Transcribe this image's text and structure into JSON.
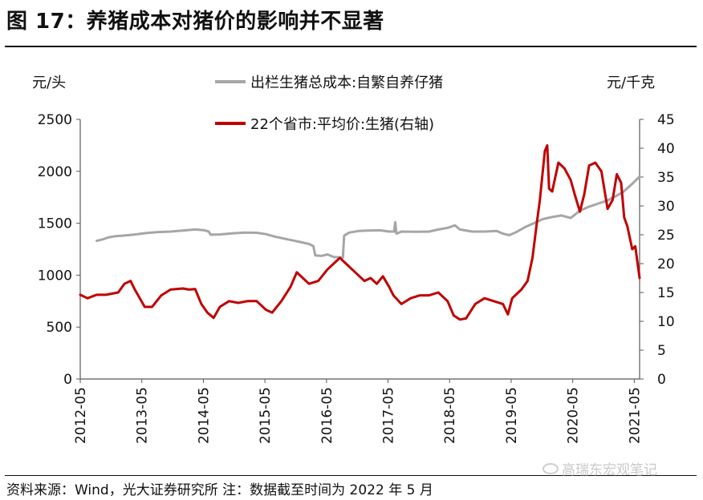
{
  "header": {
    "title": "图 17：养猪成本对猪价的影响并不显著"
  },
  "footer": {
    "source": "资料来源：Wind，光大证券研究所  注：数据截至时间为 2022 年 5 月",
    "watermark": "高瑞东宏观笔记"
  },
  "chart_data": {
    "type": "line",
    "title": "养猪成本对猪价的影响并不显著",
    "xlabel": "",
    "ylabel_left": "元/头",
    "ylabel_right": "元/千克",
    "ylim_left": [
      0,
      2500
    ],
    "ylim_right": [
      0,
      45
    ],
    "yticks_left": [
      0,
      500,
      1000,
      1500,
      2000,
      2500
    ],
    "yticks_right": [
      0,
      5,
      10,
      15,
      20,
      25,
      30,
      35,
      40,
      45
    ],
    "xticks": [
      "2012-05",
      "2013-05",
      "2014-05",
      "2015-05",
      "2016-05",
      "2017-05",
      "2018-05",
      "2019-05",
      "2020-05",
      "2021-05"
    ],
    "xlim": [
      2012.333,
      2021.42
    ],
    "legend_position": "top-center",
    "series": [
      {
        "name": "出栏生猪总成本:自繁自养仔猪",
        "axis": "left",
        "color": "#a6a6a6",
        "points": [
          [
            2012.6,
            1330
          ],
          [
            2012.7,
            1345
          ],
          [
            2012.8,
            1365
          ],
          [
            2012.9,
            1375
          ],
          [
            2013.0,
            1380
          ],
          [
            2013.2,
            1390
          ],
          [
            2013.4,
            1405
          ],
          [
            2013.6,
            1415
          ],
          [
            2013.8,
            1420
          ],
          [
            2014.0,
            1430
          ],
          [
            2014.2,
            1440
          ],
          [
            2014.35,
            1432
          ],
          [
            2014.42,
            1420
          ],
          [
            2014.45,
            1390
          ],
          [
            2014.6,
            1392
          ],
          [
            2014.8,
            1402
          ],
          [
            2015.0,
            1410
          ],
          [
            2015.2,
            1408
          ],
          [
            2015.35,
            1395
          ],
          [
            2015.5,
            1370
          ],
          [
            2015.7,
            1345
          ],
          [
            2015.9,
            1320
          ],
          [
            2016.05,
            1300
          ],
          [
            2016.12,
            1280
          ],
          [
            2016.15,
            1190
          ],
          [
            2016.25,
            1185
          ],
          [
            2016.35,
            1200
          ],
          [
            2016.45,
            1175
          ],
          [
            2016.6,
            1170
          ],
          [
            2016.62,
            1380
          ],
          [
            2016.7,
            1410
          ],
          [
            2016.85,
            1425
          ],
          [
            2017.0,
            1430
          ],
          [
            2017.2,
            1432
          ],
          [
            2017.35,
            1420
          ],
          [
            2017.43,
            1420
          ],
          [
            2017.45,
            1510
          ],
          [
            2017.47,
            1400
          ],
          [
            2017.55,
            1420
          ],
          [
            2017.8,
            1418
          ],
          [
            2018.0,
            1420
          ],
          [
            2018.15,
            1440
          ],
          [
            2018.3,
            1455
          ],
          [
            2018.42,
            1480
          ],
          [
            2018.5,
            1440
          ],
          [
            2018.7,
            1420
          ],
          [
            2018.9,
            1420
          ],
          [
            2019.1,
            1425
          ],
          [
            2019.2,
            1400
          ],
          [
            2019.3,
            1385
          ],
          [
            2019.4,
            1410
          ],
          [
            2019.55,
            1460
          ],
          [
            2019.7,
            1500
          ],
          [
            2019.85,
            1540
          ],
          [
            2020.0,
            1560
          ],
          [
            2020.15,
            1575
          ],
          [
            2020.3,
            1550
          ],
          [
            2020.45,
            1620
          ],
          [
            2020.6,
            1660
          ],
          [
            2020.75,
            1690
          ],
          [
            2020.9,
            1720
          ],
          [
            2021.0,
            1750
          ],
          [
            2021.15,
            1800
          ],
          [
            2021.3,
            1880
          ],
          [
            2021.42,
            1950
          ]
        ]
      },
      {
        "name": "22个省市:平均价:生猪(右轴)",
        "axis": "right",
        "color": "#c00000",
        "points": [
          [
            2012.333,
            14.6
          ],
          [
            2012.45,
            14.0
          ],
          [
            2012.6,
            14.6
          ],
          [
            2012.75,
            14.6
          ],
          [
            2012.95,
            15.0
          ],
          [
            2013.05,
            16.5
          ],
          [
            2013.15,
            17.0
          ],
          [
            2013.22,
            15.5
          ],
          [
            2013.3,
            14.0
          ],
          [
            2013.38,
            12.5
          ],
          [
            2013.5,
            12.5
          ],
          [
            2013.65,
            14.5
          ],
          [
            2013.8,
            15.5
          ],
          [
            2014.0,
            15.7
          ],
          [
            2014.1,
            15.5
          ],
          [
            2014.2,
            15.6
          ],
          [
            2014.3,
            13.0
          ],
          [
            2014.4,
            11.5
          ],
          [
            2014.5,
            10.6
          ],
          [
            2014.6,
            12.5
          ],
          [
            2014.75,
            13.5
          ],
          [
            2014.9,
            13.2
          ],
          [
            2015.05,
            13.5
          ],
          [
            2015.2,
            13.5
          ],
          [
            2015.35,
            12.0
          ],
          [
            2015.45,
            11.5
          ],
          [
            2015.6,
            13.5
          ],
          [
            2015.75,
            16.0
          ],
          [
            2015.85,
            18.5
          ],
          [
            2015.95,
            17.5
          ],
          [
            2016.05,
            16.5
          ],
          [
            2016.2,
            17.0
          ],
          [
            2016.35,
            19.0
          ],
          [
            2016.45,
            20.0
          ],
          [
            2016.55,
            21.0
          ],
          [
            2016.65,
            20.0
          ],
          [
            2016.8,
            18.5
          ],
          [
            2016.95,
            17.0
          ],
          [
            2017.05,
            17.5
          ],
          [
            2017.15,
            16.5
          ],
          [
            2017.25,
            17.8
          ],
          [
            2017.35,
            16.0
          ],
          [
            2017.42,
            14.5
          ],
          [
            2017.55,
            13.0
          ],
          [
            2017.7,
            14.0
          ],
          [
            2017.85,
            14.5
          ],
          [
            2018.0,
            14.5
          ],
          [
            2018.15,
            15.0
          ],
          [
            2018.3,
            13.5
          ],
          [
            2018.4,
            11.0
          ],
          [
            2018.5,
            10.3
          ],
          [
            2018.6,
            10.5
          ],
          [
            2018.75,
            13.0
          ],
          [
            2018.9,
            14.0
          ],
          [
            2019.05,
            13.5
          ],
          [
            2019.2,
            13.0
          ],
          [
            2019.28,
            11.2
          ],
          [
            2019.35,
            14.0
          ],
          [
            2019.5,
            15.5
          ],
          [
            2019.6,
            17.0
          ],
          [
            2019.68,
            21.0
          ],
          [
            2019.75,
            27.0
          ],
          [
            2019.8,
            31.0
          ],
          [
            2019.88,
            39.5
          ],
          [
            2019.92,
            40.5
          ],
          [
            2019.95,
            33.0
          ],
          [
            2020.0,
            32.5
          ],
          [
            2020.1,
            37.5
          ],
          [
            2020.2,
            36.5
          ],
          [
            2020.3,
            34.5
          ],
          [
            2020.38,
            31.5
          ],
          [
            2020.45,
            29.0
          ],
          [
            2020.52,
            32.0
          ],
          [
            2020.6,
            37.0
          ],
          [
            2020.7,
            37.5
          ],
          [
            2020.8,
            36.0
          ],
          [
            2020.9,
            29.5
          ],
          [
            2020.98,
            31.0
          ],
          [
            2021.05,
            35.5
          ],
          [
            2021.12,
            34.0
          ],
          [
            2021.17,
            28.0
          ],
          [
            2021.22,
            26.5
          ],
          [
            2021.3,
            22.5
          ],
          [
            2021.35,
            23.0
          ],
          [
            2021.42,
            17.5
          ]
        ]
      }
    ]
  }
}
